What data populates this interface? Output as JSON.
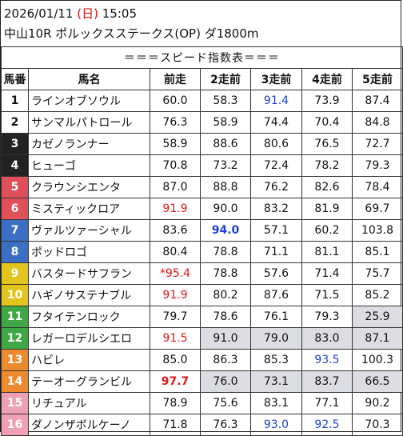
{
  "header": {
    "date": "2026/01/11",
    "weekday_open": "(",
    "weekday": "日",
    "weekday_close": ")",
    "time": "15:05",
    "race": "中山10R ポルックスステークス(OP) ダ1800m"
  },
  "table": {
    "title": "＝＝＝スピード指数表＝＝＝",
    "columns": [
      "馬番",
      "馬名",
      "前走",
      "2走前",
      "3走前",
      "4走前",
      "5走前"
    ],
    "rows": [
      {
        "no": "1",
        "name": "ラインオブソウル",
        "v": [
          "60.0",
          "58.3",
          "91.4",
          "73.9",
          "87.4"
        ],
        "style": [
          "",
          "",
          "blue",
          "",
          ""
        ],
        "bg": [
          "",
          "",
          "",
          "",
          ""
        ],
        "color": "#ffffff",
        "text": "#111111"
      },
      {
        "no": "2",
        "name": "サンマルパトロール",
        "v": [
          "76.3",
          "58.9",
          "74.4",
          "70.4",
          "84.8"
        ],
        "style": [
          "",
          "",
          "",
          "",
          ""
        ],
        "bg": [
          "",
          "",
          "",
          "",
          ""
        ],
        "color": "#ffffff",
        "text": "#111111"
      },
      {
        "no": "3",
        "name": "カゼノランナー",
        "v": [
          "58.9",
          "88.6",
          "80.6",
          "76.5",
          "72.7"
        ],
        "style": [
          "",
          "",
          "",
          "",
          ""
        ],
        "bg": [
          "",
          "",
          "",
          "",
          ""
        ],
        "color": "#222222",
        "text": "#ffffff"
      },
      {
        "no": "4",
        "name": "ヒューゴ",
        "v": [
          "70.8",
          "73.2",
          "72.4",
          "78.2",
          "79.3"
        ],
        "style": [
          "",
          "",
          "",
          "",
          ""
        ],
        "bg": [
          "",
          "",
          "",
          "",
          ""
        ],
        "color": "#222222",
        "text": "#ffffff"
      },
      {
        "no": "5",
        "name": "クラウンシエンタ",
        "v": [
          "87.0",
          "88.8",
          "76.2",
          "82.6",
          "78.4"
        ],
        "style": [
          "",
          "",
          "",
          "",
          ""
        ],
        "bg": [
          "",
          "",
          "",
          "",
          ""
        ],
        "color": "#e0505a",
        "text": "#ffffff"
      },
      {
        "no": "6",
        "name": "ミスティックロア",
        "v": [
          "91.9",
          "90.0",
          "83.2",
          "81.9",
          "69.7"
        ],
        "style": [
          "red",
          "",
          "",
          "",
          ""
        ],
        "bg": [
          "",
          "",
          "",
          "",
          ""
        ],
        "color": "#e0505a",
        "text": "#ffffff"
      },
      {
        "no": "7",
        "name": "ヴァルツァーシャル",
        "v": [
          "83.6",
          "94.0",
          "57.1",
          "60.2",
          "103.8"
        ],
        "style": [
          "",
          "blue bold",
          "",
          "",
          ""
        ],
        "bg": [
          "",
          "",
          "",
          "",
          ""
        ],
        "color": "#3a6fc4",
        "text": "#ffffff"
      },
      {
        "no": "8",
        "name": "ポッドロゴ",
        "v": [
          "80.4",
          "78.8",
          "71.1",
          "81.1",
          "85.1"
        ],
        "style": [
          "",
          "",
          "",
          "",
          ""
        ],
        "bg": [
          "",
          "",
          "",
          "",
          ""
        ],
        "color": "#3a6fc4",
        "text": "#ffffff"
      },
      {
        "no": "9",
        "name": "バスタードサフラン",
        "v": [
          "*95.4",
          "78.8",
          "57.6",
          "71.4",
          "75.7"
        ],
        "style": [
          "red",
          "",
          "",
          "",
          ""
        ],
        "bg": [
          "",
          "",
          "",
          "",
          ""
        ],
        "color": "#e3c41c",
        "text": "#ffffff"
      },
      {
        "no": "10",
        "name": "ハギノサステナブル",
        "v": [
          "91.9",
          "80.2",
          "87.6",
          "71.5",
          "85.2"
        ],
        "style": [
          "red",
          "",
          "",
          "",
          ""
        ],
        "bg": [
          "",
          "",
          "",
          "",
          ""
        ],
        "color": "#e3c41c",
        "text": "#ffffff"
      },
      {
        "no": "11",
        "name": "フタイテンロック",
        "v": [
          "79.7",
          "78.6",
          "76.1",
          "79.3",
          "25.9"
        ],
        "style": [
          "",
          "",
          "",
          "",
          ""
        ],
        "bg": [
          "",
          "",
          "",
          "",
          "gray"
        ],
        "color": "#3fa845",
        "text": "#ffffff"
      },
      {
        "no": "12",
        "name": "レガーロデルシエロ",
        "v": [
          "91.5",
          "91.0",
          "79.0",
          "83.0",
          "87.1"
        ],
        "style": [
          "red",
          "",
          "",
          "",
          ""
        ],
        "bg": [
          "",
          "gray",
          "gray",
          "gray",
          "gray"
        ],
        "color": "#3fa845",
        "text": "#ffffff"
      },
      {
        "no": "13",
        "name": "ハビレ",
        "v": [
          "85.0",
          "86.3",
          "85.3",
          "93.5",
          "100.3"
        ],
        "style": [
          "",
          "",
          "",
          "blue",
          ""
        ],
        "bg": [
          "",
          "",
          "",
          "",
          ""
        ],
        "color": "#ee8a2e",
        "text": "#ffffff"
      },
      {
        "no": "14",
        "name": "テーオーグランビル",
        "v": [
          "97.7",
          "76.0",
          "73.1",
          "83.7",
          "66.5"
        ],
        "style": [
          "red bold",
          "",
          "",
          "",
          ""
        ],
        "bg": [
          "",
          "gray",
          "gray",
          "gray",
          "gray"
        ],
        "color": "#ee8a2e",
        "text": "#ffffff"
      },
      {
        "no": "15",
        "name": "リチュアル",
        "v": [
          "78.9",
          "75.6",
          "83.1",
          "77.1",
          "90.2"
        ],
        "style": [
          "",
          "",
          "",
          "",
          ""
        ],
        "bg": [
          "",
          "",
          "",
          "",
          ""
        ],
        "color": "#f0a0b6",
        "text": "#ffffff"
      },
      {
        "no": "16",
        "name": "ダノンザボルケーノ",
        "v": [
          "71.8",
          "76.3",
          "93.0",
          "92.5",
          "70.3"
        ],
        "style": [
          "",
          "",
          "blue",
          "blue",
          ""
        ],
        "bg": [
          "",
          "",
          "",
          "",
          ""
        ],
        "color": "#f0a0b6",
        "text": "#ffffff"
      }
    ]
  }
}
